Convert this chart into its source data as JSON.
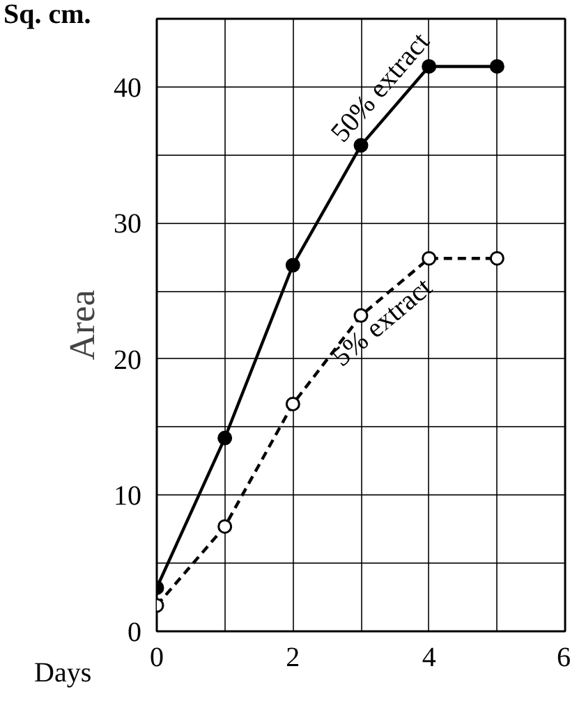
{
  "chart_data": {
    "type": "line",
    "xlabel": "Days",
    "ylabel": "Area",
    "annotations": [
      "Sq. cm."
    ],
    "x": [
      0,
      1,
      2,
      3,
      4,
      5
    ],
    "series": [
      {
        "name": "50% extract",
        "color": "#000000",
        "values": [
          3.2,
          14.2,
          26.9,
          35.7,
          41.5,
          41.5
        ],
        "line_style": "solid",
        "marker": "circle"
      },
      {
        "name": "5% extract",
        "color": "#000000",
        "values": [
          1.9,
          7.7,
          16.7,
          23.2,
          27.4,
          27.4
        ],
        "line_style": "dashed",
        "marker": "circle"
      }
    ],
    "xlim": [
      0,
      6
    ],
    "ylim": [
      0,
      45
    ],
    "xticks": [
      0,
      {
        "value": 1,
        "label": null
      },
      2,
      {
        "value": 3,
        "label": null
      },
      4,
      {
        "value": 5,
        "label": null
      },
      6
    ],
    "yticks": [
      0,
      {
        "value": 5,
        "label": null
      },
      10,
      {
        "value": 15,
        "label": null
      },
      20,
      {
        "value": 25,
        "label": null
      },
      30,
      {
        "value": 35,
        "label": null
      },
      40,
      {
        "value": 45,
        "label": null
      }
    ],
    "grid": true
  }
}
